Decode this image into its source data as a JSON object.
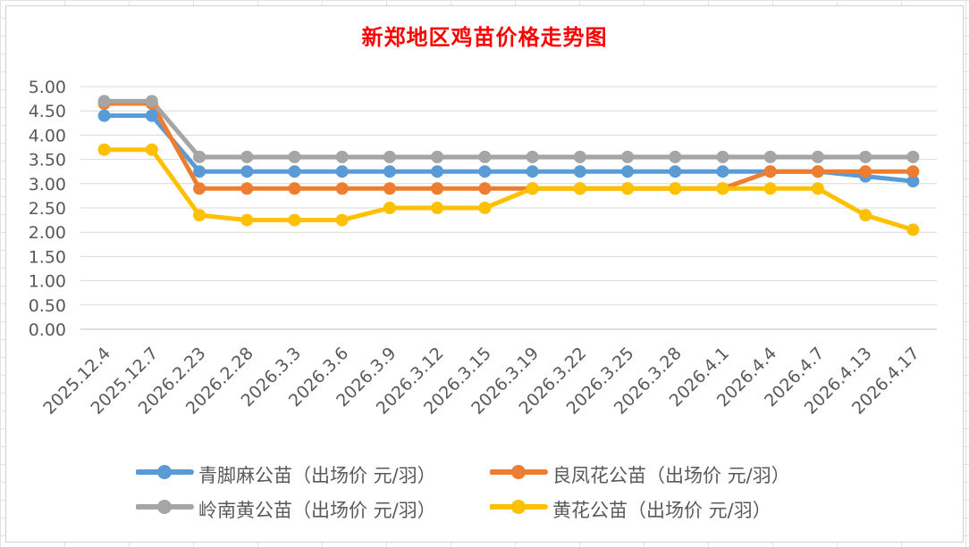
{
  "title": "新郑地区鸡苗价格走势图",
  "chart_data": {
    "type": "line",
    "title": "新郑地区鸡苗价格走势图",
    "categories": [
      "2025.12.4",
      "2025.12.7",
      "2026.2.23",
      "2026.2.28",
      "2026.3.3",
      "2026.3.6",
      "2026.3.9",
      "2026.3.12",
      "2026.3.15",
      "2026.3.19",
      "2026.3.22",
      "2026.3.25",
      "2026.3.28",
      "2026.4.1",
      "2026.4.4",
      "2026.4.7",
      "2026.4.13",
      "2026.4.17"
    ],
    "y_ticks": [
      "0.00",
      "0.50",
      "1.00",
      "1.50",
      "2.00",
      "2.50",
      "3.00",
      "3.50",
      "4.00",
      "4.50",
      "5.00"
    ],
    "ylim": [
      0,
      5
    ],
    "grid": true,
    "legend_position": "bottom",
    "series": [
      {
        "name": "青脚麻公苗（出场价 元/羽）",
        "color": "#5b9bd5",
        "values": [
          4.4,
          4.4,
          3.25,
          3.25,
          3.25,
          3.25,
          3.25,
          3.25,
          3.25,
          3.25,
          3.25,
          3.25,
          3.25,
          3.25,
          3.25,
          3.25,
          3.15,
          3.05
        ]
      },
      {
        "name": "良凤花公苗（出场价 元/羽）",
        "color": "#ed7d31",
        "values": [
          4.65,
          4.65,
          2.9,
          2.9,
          2.9,
          2.9,
          2.9,
          2.9,
          2.9,
          2.9,
          2.9,
          2.9,
          2.9,
          2.9,
          3.25,
          3.25,
          3.25,
          3.25
        ]
      },
      {
        "name": "岭南黄公苗（出场价 元/羽）",
        "color": "#a5a5a5",
        "values": [
          4.7,
          4.7,
          3.55,
          3.55,
          3.55,
          3.55,
          3.55,
          3.55,
          3.55,
          3.55,
          3.55,
          3.55,
          3.55,
          3.55,
          3.55,
          3.55,
          3.55,
          3.55
        ]
      },
      {
        "name": "黄花公苗（出场价 元/羽）",
        "color": "#ffc000",
        "values": [
          3.7,
          3.7,
          2.35,
          2.25,
          2.25,
          2.25,
          2.5,
          2.5,
          2.5,
          2.9,
          2.9,
          2.9,
          2.9,
          2.9,
          2.9,
          2.9,
          2.35,
          2.05
        ]
      }
    ]
  }
}
